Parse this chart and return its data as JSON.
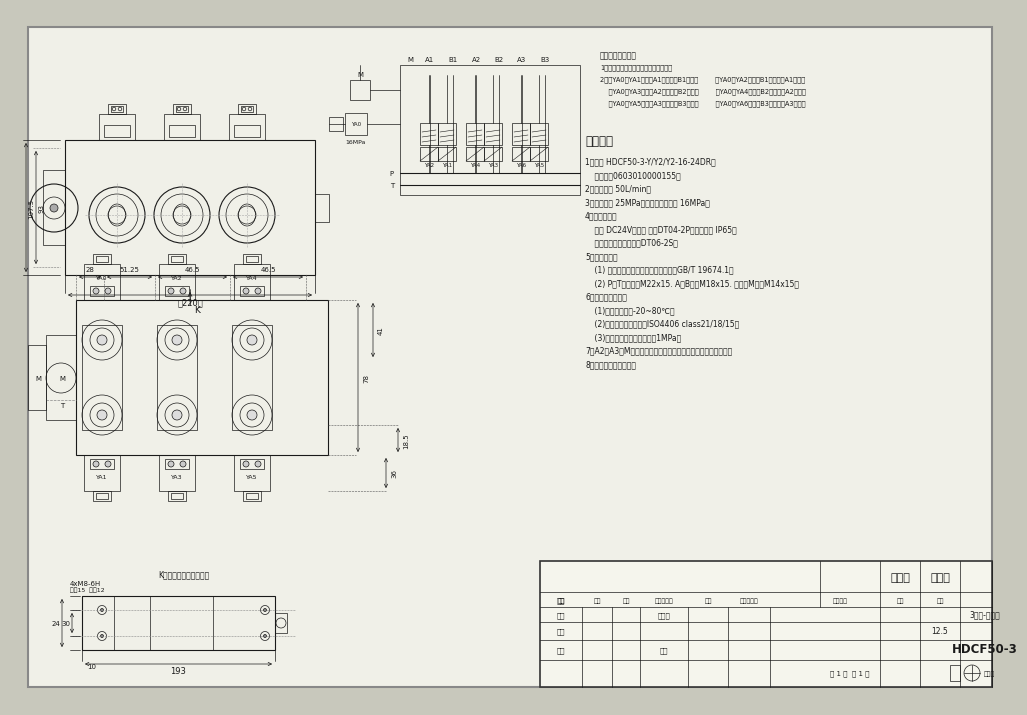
{
  "bg_outer": "#c8c8bc",
  "bg_inner": "#f0f0e8",
  "line_color": "#1a1a1a",
  "dim_color": "#333333",
  "center_line_color": "#777777",
  "solenoid_notes_title": "电磁阀动作说明：",
  "solenoid_note1": "1、当全部电磁阀不得电，控制阀回路：",
  "solenoid_note2a": "2、当YA0、YA1得电，A1口出油，B1回油；",
  "solenoid_note2b": "    当YA0、YA2得电，B1口出油，A1回油；",
  "solenoid_note3a": "    当YA0、YA3得电，A2口出油，B2回油；",
  "solenoid_note3b": "    当YA0、YA4得电，B2口出油，A2回油；",
  "solenoid_note4a": "    当YA0、YA5得电，A3口出油，B3回油；",
  "solenoid_note4b": "    当YA0、YA6得电，B3口出油，A3回油；",
  "tech_title": "技术要求",
  "tech_lines": [
    "1、型号 HDCF50-3-Y/Y2/Y2-16-24DR；",
    "    料料号：0603010000155；",
    "2、额定流量 50L/min；",
    "3、额定压力 25MPa；安全阀设定压力 16MPa；",
    "4、电磁铁参数",
    "    电压 DC24V；接口 德制DT04-2P，防水等级 IP65；",
    "    匹配线束插接件型号：DT06-2S；",
    "5、出口参数：",
    "    (1) 所有油口均为平面密封，符合标准GB/T 19674.1；",
    "    (2) P、T口螺纹：M22x15. A、B口：M18x15. 溢压口M口：M14x15；",
    "6、工作条件要求：",
    "    (1)液压油温度：-20~80℃；",
    "    (2)液压液清洁度不低于ISO4406 class21/18/15；",
    "    (3)电磁阀口回油背压不超过1MPa；",
    "7、A2、A3、M油口用金属螺堵密封，其它油口用塑料螺堵密封。",
    "8、零件表面喷黑色漆。"
  ],
  "tb_drawing_name": "外形图",
  "tb_part_name": "3路阀-外形图",
  "tb_drawing_no": "HDCF50-3",
  "tb_scale": "1:2.5",
  "tb_sheets": "共 1 张  第 1 张",
  "tb_labels": [
    "标记",
    "处数",
    "分区",
    "更改文件号",
    "签名",
    "年、月、日"
  ],
  "tb_row_labels": [
    "设计",
    "校对",
    "审核",
    "工艺"
  ],
  "tb_std": "标准化",
  "tb_approve": "批准",
  "tb_ref_mark": "贵目标记",
  "tb_weight": "重量",
  "tb_scale_label": "比例",
  "tb_version": "版本号"
}
